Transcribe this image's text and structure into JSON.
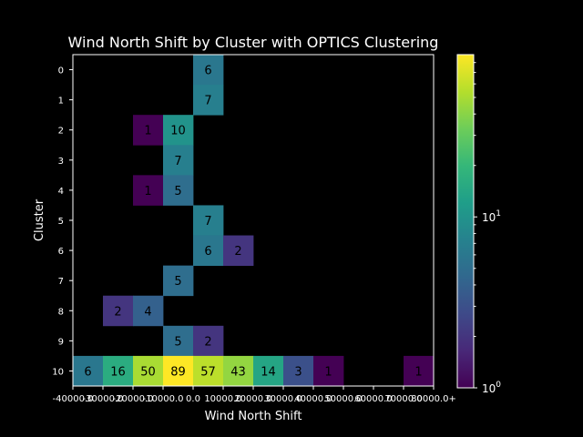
{
  "chart_data": {
    "type": "heatmap",
    "title": "Wind North Shift by Cluster with OPTICS Clustering",
    "xlabel": "Wind North Shift",
    "ylabel": "Cluster",
    "x_tick_labels": [
      "-40000.0",
      "-30000.0",
      "-20000.0",
      "-10000.0",
      "0.0",
      "10000.0",
      "20000.0",
      "30000.0",
      "40000.0",
      "50000.0",
      "60000.0",
      "70000.0",
      "80000.0+"
    ],
    "x_tick_display": [
      "-40000.0",
      "-30000.0",
      "-20000.0",
      "-10000.0",
      "0.0",
      "10000.0",
      "20000.0",
      "30000.0",
      "40000.0",
      "50000.0",
      "60000.0",
      "70000.0",
      "80000.0+"
    ],
    "y_categories": [
      "0",
      "1",
      "2",
      "3",
      "4",
      "5",
      "6",
      "7",
      "8",
      "9",
      "10"
    ],
    "cells": [
      {
        "row": "0",
        "col": 4,
        "value": 6
      },
      {
        "row": "1",
        "col": 4,
        "value": 7
      },
      {
        "row": "2",
        "col": 2,
        "value": 1
      },
      {
        "row": "2",
        "col": 3,
        "value": 10
      },
      {
        "row": "3",
        "col": 3,
        "value": 7
      },
      {
        "row": "4",
        "col": 2,
        "value": 1
      },
      {
        "row": "4",
        "col": 3,
        "value": 5
      },
      {
        "row": "5",
        "col": 4,
        "value": 7
      },
      {
        "row": "6",
        "col": 4,
        "value": 6
      },
      {
        "row": "6",
        "col": 5,
        "value": 2
      },
      {
        "row": "7",
        "col": 3,
        "value": 5
      },
      {
        "row": "8",
        "col": 1,
        "value": 2
      },
      {
        "row": "8",
        "col": 2,
        "value": 4
      },
      {
        "row": "9",
        "col": 3,
        "value": 5
      },
      {
        "row": "9",
        "col": 4,
        "value": 2
      },
      {
        "row": "10",
        "col": 0,
        "value": 6
      },
      {
        "row": "10",
        "col": 1,
        "value": 16
      },
      {
        "row": "10",
        "col": 2,
        "value": 50
      },
      {
        "row": "10",
        "col": 3,
        "value": 89
      },
      {
        "row": "10",
        "col": 4,
        "value": 57
      },
      {
        "row": "10",
        "col": 5,
        "value": 43
      },
      {
        "row": "10",
        "col": 6,
        "value": 14
      },
      {
        "row": "10",
        "col": 7,
        "value": 3
      },
      {
        "row": "10",
        "col": 8,
        "value": 1
      },
      {
        "row": "10",
        "col": 11,
        "value": 1
      }
    ],
    "n_cols": 12,
    "colorbar": {
      "scale": "log",
      "colormap": "viridis",
      "range": [
        1,
        89
      ],
      "tick_labels": [
        {
          "value": 1,
          "base": "10",
          "exp": "0"
        },
        {
          "value": 10,
          "base": "10",
          "exp": "1"
        }
      ]
    },
    "grid": false,
    "background": "#000000",
    "foreground": "#ffffff"
  }
}
